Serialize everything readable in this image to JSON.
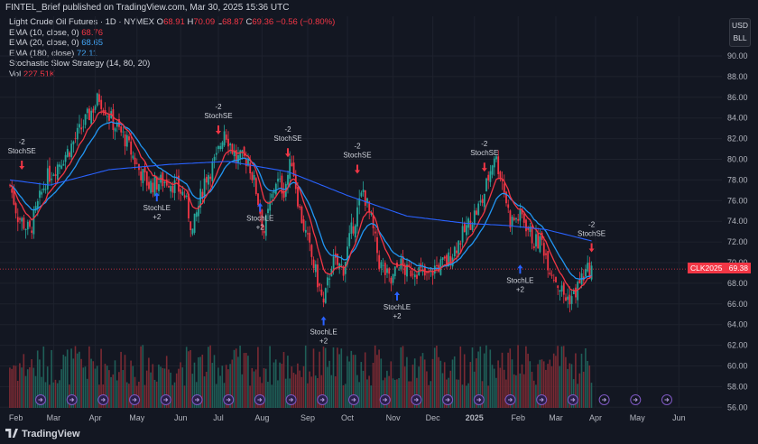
{
  "header": {
    "publisher": "FINTEL_Brief published on TradingView.com, Mar 30, 2025 15:36 UTC"
  },
  "legend": {
    "symbol": "Light Crude Oil Futures · 1D · NYMEX",
    "o_label": "O",
    "o": "68.91",
    "h_label": "H",
    "h": "70.09",
    "l_label": "L",
    "l": "68.87",
    "c_label": "C",
    "c": "69.36",
    "change": "−0.56 (−0.80%)",
    "ema10": "EMA (10, close, 0)",
    "ema10_val": "68.76",
    "ema20": "EMA (20, close, 0)",
    "ema20_val": "68.65",
    "ema180": "EMA (180, close)",
    "ema180_val": "72.11",
    "strategy": "Stochastic Slow Strategy (14, 80, 20)",
    "vol": "Vol",
    "vol_val": "227.51K"
  },
  "currency": {
    "line1": "USD",
    "line2": "BLL"
  },
  "pricetag": {
    "symbol": "CLK2025",
    "price": "69.38"
  },
  "branding": "TradingView",
  "colors": {
    "up": "#26a69a",
    "down": "#f23645",
    "ema10": "#f23645",
    "ema20": "#2196f3",
    "ema180": "#2962ff",
    "bg": "#131722"
  },
  "chart_data": {
    "type": "candlestick",
    "y_ticks": [
      "90.00",
      "88.00",
      "86.00",
      "84.00",
      "82.00",
      "80.00",
      "78.00",
      "76.00",
      "74.00",
      "72.00",
      "70.00",
      "68.00",
      "66.00",
      "64.00",
      "62.00",
      "60.00",
      "58.00",
      "56.00"
    ],
    "ylim": [
      56,
      91
    ],
    "x_ticks": [
      {
        "label": "Feb",
        "i": 3
      },
      {
        "label": "Mar",
        "i": 22
      },
      {
        "label": "Apr",
        "i": 43
      },
      {
        "label": "May",
        "i": 64
      },
      {
        "label": "Jun",
        "i": 86
      },
      {
        "label": "Jul",
        "i": 105
      },
      {
        "label": "Aug",
        "i": 127
      },
      {
        "label": "Sep",
        "i": 150
      },
      {
        "label": "Oct",
        "i": 170
      },
      {
        "label": "Nov",
        "i": 193
      },
      {
        "label": "Dec",
        "i": 213
      },
      {
        "label": "2025",
        "i": 234
      },
      {
        "label": "Feb",
        "i": 256
      },
      {
        "label": "Mar",
        "i": 275
      },
      {
        "label": "Apr",
        "i": 295
      },
      {
        "label": "May",
        "i": 316
      },
      {
        "label": "Jun",
        "i": 337
      }
    ],
    "bars": 294,
    "close_anchors": [
      [
        0,
        77.5
      ],
      [
        4,
        74.5
      ],
      [
        10,
        73.0
      ],
      [
        18,
        78.0
      ],
      [
        30,
        81.0
      ],
      [
        45,
        86.0
      ],
      [
        52,
        83.5
      ],
      [
        58,
        82.0
      ],
      [
        65,
        79.0
      ],
      [
        70,
        77.5
      ],
      [
        80,
        78.0
      ],
      [
        88,
        76.5
      ],
      [
        92,
        73.0
      ],
      [
        98,
        78.0
      ],
      [
        104,
        80.0
      ],
      [
        108,
        83.0
      ],
      [
        114,
        80.0
      ],
      [
        120,
        80.0
      ],
      [
        124,
        77.0
      ],
      [
        128,
        73.0
      ],
      [
        134,
        78.0
      ],
      [
        138,
        77.0
      ],
      [
        142,
        80.0
      ],
      [
        146,
        75.0
      ],
      [
        150,
        72.0
      ],
      [
        156,
        67.5
      ],
      [
        158,
        65.8
      ],
      [
        162,
        70.0
      ],
      [
        168,
        69.5
      ],
      [
        172,
        73.0
      ],
      [
        178,
        77.0
      ],
      [
        182,
        74.0
      ],
      [
        186,
        70.0
      ],
      [
        192,
        68.0
      ],
      [
        196,
        70.0
      ],
      [
        200,
        69.0
      ],
      [
        204,
        69.5
      ],
      [
        210,
        68.5
      ],
      [
        214,
        69.5
      ],
      [
        220,
        70.0
      ],
      [
        226,
        72.0
      ],
      [
        232,
        74.0
      ],
      [
        238,
        76.0
      ],
      [
        244,
        80.5
      ],
      [
        248,
        78.0
      ],
      [
        252,
        74.0
      ],
      [
        258,
        74.5
      ],
      [
        264,
        72.0
      ],
      [
        268,
        72.0
      ],
      [
        272,
        69.5
      ],
      [
        276,
        68.0
      ],
      [
        280,
        66.5
      ],
      [
        284,
        66.8
      ],
      [
        288,
        68.5
      ],
      [
        292,
        69.4
      ]
    ],
    "ema180_anchors": [
      [
        0,
        78.0
      ],
      [
        20,
        77.5
      ],
      [
        50,
        79.0
      ],
      [
        80,
        79.5
      ],
      [
        110,
        79.8
      ],
      [
        140,
        78.8
      ],
      [
        170,
        76.5
      ],
      [
        200,
        74.5
      ],
      [
        230,
        73.8
      ],
      [
        250,
        73.6
      ],
      [
        270,
        73.2
      ],
      [
        293,
        72.1
      ]
    ],
    "signals": [
      {
        "type": "short",
        "i": 6,
        "price": 79.0,
        "label1": "-2",
        "label2": "StochSE"
      },
      {
        "type": "long",
        "i": 74,
        "price": 76.8,
        "label1": "StochLE",
        "label2": "+2"
      },
      {
        "type": "short",
        "i": 105,
        "price": 82.4,
        "label1": "-2",
        "label2": "StochSE"
      },
      {
        "type": "long",
        "i": 126,
        "price": 75.8,
        "label1": "StochLE",
        "label2": "+2"
      },
      {
        "type": "short",
        "i": 140,
        "price": 80.2,
        "label1": "-2",
        "label2": "StochSE"
      },
      {
        "type": "short",
        "i": 175,
        "price": 78.6,
        "label1": "-2",
        "label2": "StochSE"
      },
      {
        "type": "long",
        "i": 158,
        "price": 64.8,
        "label1": "StochLE",
        "label2": "+2"
      },
      {
        "type": "long",
        "i": 195,
        "price": 67.2,
        "label1": "StochLE",
        "label2": "+2"
      },
      {
        "type": "short",
        "i": 239,
        "price": 78.8,
        "label1": "-2",
        "label2": "StochSE"
      },
      {
        "type": "long",
        "i": 257,
        "price": 69.8,
        "label1": "StochLE",
        "label2": "+2"
      },
      {
        "type": "short",
        "i": 293,
        "price": 71.0,
        "label1": "-2",
        "label2": "StochSE"
      }
    ],
    "last_price": 69.38
  }
}
